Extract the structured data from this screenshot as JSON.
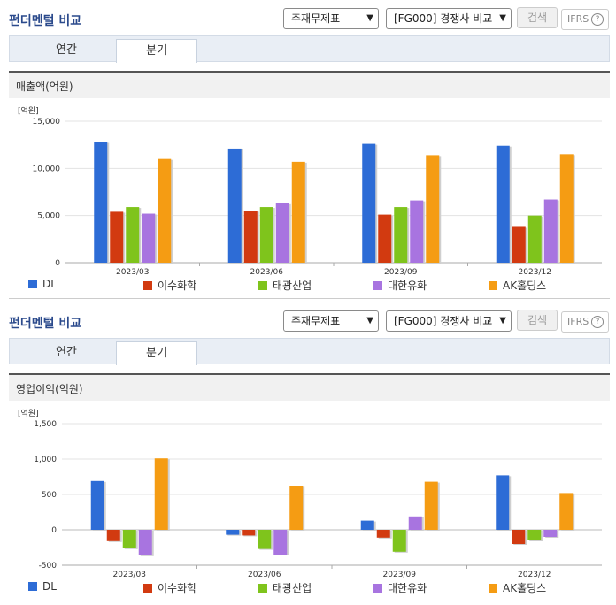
{
  "sections": [
    {
      "title": "펀더멘털 비교",
      "select1": "주재무제표",
      "select2": "[FG000] 경쟁사 비교",
      "search_label": "검색",
      "ifrs_label": "IFRS",
      "help_label": "?",
      "tabs": [
        "연간",
        "분기"
      ],
      "active_tab": "분기",
      "chart_title": "매출액(억원)",
      "unit": "[억원]"
    },
    {
      "title": "펀더멘털 비교",
      "select1": "주재무제표",
      "select2": "[FG000] 경쟁사 비교",
      "search_label": "검색",
      "ifrs_label": "IFRS",
      "help_label": "?",
      "tabs": [
        "연간",
        "분기"
      ],
      "active_tab": "분기",
      "chart_title": "영업이익(억원)",
      "unit": "[억원]"
    }
  ],
  "chart_data": [
    {
      "type": "bar",
      "title": "매출액(억원)",
      "ylabel": "[억원]",
      "categories": [
        "2023/03",
        "2023/06",
        "2023/09",
        "2023/12"
      ],
      "ylim": [
        0,
        15000
      ],
      "yticks": [
        0,
        5000,
        10000,
        15000
      ],
      "ytick_labels": [
        "0",
        "5,000",
        "10,000",
        "15,000"
      ],
      "grid": true,
      "legend_position": "bottom",
      "series": [
        {
          "name": "DL",
          "color": "#2d6cd6",
          "values": [
            12800,
            12100,
            12600,
            12400
          ]
        },
        {
          "name": "이수화학",
          "color": "#d23a10",
          "values": [
            5400,
            5500,
            5100,
            3800
          ]
        },
        {
          "name": "태광산업",
          "color": "#7fc41c",
          "values": [
            5900,
            5900,
            5900,
            5000
          ]
        },
        {
          "name": "대한유화",
          "color": "#a874e0",
          "values": [
            5200,
            6300,
            6600,
            6700
          ]
        },
        {
          "name": "AK홀딩스",
          "color": "#f59c13",
          "values": [
            11000,
            10700,
            11400,
            11500
          ]
        }
      ]
    },
    {
      "type": "bar",
      "title": "영업이익(억원)",
      "ylabel": "[억원]",
      "categories": [
        "2023/03",
        "2023/06",
        "2023/09",
        "2023/12"
      ],
      "ylim": [
        -500,
        1500
      ],
      "yticks": [
        -500,
        0,
        500,
        1000,
        1500
      ],
      "ytick_labels": [
        "-500",
        "0",
        "500",
        "1,000",
        "1,500"
      ],
      "grid": true,
      "legend_position": "bottom",
      "series": [
        {
          "name": "DL",
          "color": "#2d6cd6",
          "values": [
            690,
            -70,
            130,
            770
          ]
        },
        {
          "name": "이수화학",
          "color": "#d23a10",
          "values": [
            -160,
            -80,
            -110,
            -200
          ]
        },
        {
          "name": "태광산업",
          "color": "#7fc41c",
          "values": [
            -260,
            -270,
            -310,
            -150
          ]
        },
        {
          "name": "대한유화",
          "color": "#a874e0",
          "values": [
            -360,
            -350,
            190,
            -100
          ]
        },
        {
          "name": "AK홀딩스",
          "color": "#f59c13",
          "values": [
            1010,
            620,
            680,
            520
          ]
        }
      ]
    }
  ]
}
